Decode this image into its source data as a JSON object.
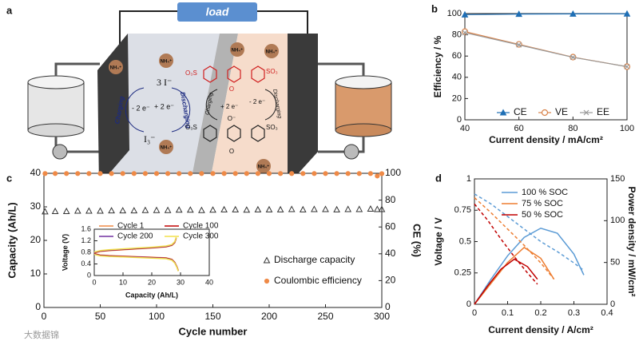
{
  "schematic": {
    "label": "a",
    "load": "load",
    "ammonium": "NH₄⁺",
    "triiodide": "I₃⁻",
    "iodide": "3 I⁻",
    "gain": "+ 2 e⁻",
    "loss": "- 2 e⁻",
    "charging": "Charging",
    "discharging": "Discharging",
    "sulfonate_left": "O₃S",
    "sulfonate_right": "SO₃",
    "oxygen": "O",
    "oxide": "O⁻"
  },
  "watermark": "大数据锦",
  "chart_data": [
    {
      "type": "line",
      "label": "b",
      "xlabel": "Current density / mA/cm²",
      "ylabel": "Efficiency / %",
      "x": [
        40,
        60,
        80,
        100
      ],
      "xlim": [
        40,
        100
      ],
      "xticks": [
        40,
        60,
        80,
        100
      ],
      "ylim": [
        0,
        100
      ],
      "yticks": [
        0,
        20,
        40,
        60,
        80,
        100
      ],
      "grid": false,
      "legend": "bottom",
      "series": [
        {
          "name": "CE",
          "color": "#1f6fb5",
          "marker": "triangle",
          "values": [
            99,
            99.5,
            99.7,
            99.8
          ]
        },
        {
          "name": "VE",
          "color": "#d9834a",
          "marker": "circle-open",
          "values": [
            83,
            71,
            59,
            50
          ]
        },
        {
          "name": "EE",
          "color": "#9a9a9a",
          "marker": "cross",
          "values": [
            82,
            70.5,
            58.8,
            50
          ]
        }
      ]
    },
    {
      "type": "scatter",
      "label": "c",
      "xlabel": "Cycle number",
      "ylabel": "Capacity (Ah/L)",
      "y2label": "CE (%)",
      "x": [
        1,
        10,
        20,
        30,
        40,
        50,
        60,
        70,
        80,
        90,
        100,
        110,
        120,
        130,
        140,
        150,
        160,
        170,
        180,
        190,
        200,
        210,
        220,
        230,
        240,
        250,
        260,
        270,
        280,
        290,
        296,
        300
      ],
      "xlim": [
        0,
        300
      ],
      "xticks": [
        0,
        50,
        100,
        150,
        200,
        250,
        300
      ],
      "ylim": [
        0,
        40
      ],
      "yticks": [
        0,
        10,
        20,
        30,
        40
      ],
      "y2lim": [
        0,
        100
      ],
      "y2ticks": [
        0,
        20,
        40,
        60,
        80,
        100
      ],
      "grid": false,
      "legend": "lower right",
      "series": [
        {
          "name": "Discharge capacity",
          "color": "#333333",
          "marker": "triangle-open",
          "axis": "y",
          "values": [
            28.6,
            28.7,
            28.7,
            28.8,
            28.8,
            28.8,
            28.9,
            28.9,
            28.9,
            29.0,
            29.0,
            29.0,
            29.1,
            29.1,
            29.0,
            29.1,
            29.2,
            29.2,
            29.1,
            29.2,
            29.2,
            29.2,
            29.3,
            29.2,
            29.3,
            29.3,
            29.2,
            29.3,
            29.3,
            29.4,
            29.3,
            29.3
          ]
        },
        {
          "name": "Coulombic efficiency",
          "color": "#ef8a47",
          "marker": "circle",
          "axis": "y2",
          "values": [
            99.8,
            99.8,
            99.8,
            99.8,
            99.8,
            99.8,
            99.8,
            99.8,
            99.8,
            99.8,
            99.8,
            99.8,
            99.8,
            99.8,
            99.8,
            99.8,
            99.8,
            99.8,
            99.8,
            99.8,
            99.8,
            99.8,
            99.8,
            99.8,
            99.8,
            99.8,
            99.8,
            99.8,
            99.8,
            99.8,
            98.0,
            99.7
          ]
        }
      ],
      "inset": {
        "type": "line",
        "xlabel": "Capacity (Ah/L)",
        "ylabel": "Voltage (V)",
        "x": [
          0,
          2,
          5,
          10,
          15,
          20,
          25,
          27,
          28,
          28.5,
          null,
          0,
          2,
          5,
          10,
          15,
          20,
          25,
          27,
          28,
          28.8,
          29.2
        ],
        "xlim": [
          0,
          40
        ],
        "xticks": [
          0,
          10,
          20,
          30,
          40
        ],
        "ylim": [
          0,
          1.6
        ],
        "yticks": [
          0,
          0.4,
          0.8,
          1.2,
          1.6
        ],
        "legend": "top",
        "series": [
          {
            "name": "Cycle 1",
            "color": "#ef8a47",
            "values": [
              0.78,
              0.83,
              0.86,
              0.89,
              0.92,
              0.95,
              0.99,
              1.04,
              1.13,
              1.28,
              null,
              0.76,
              0.71,
              0.69,
              0.67,
              0.65,
              0.63,
              0.61,
              0.56,
              0.46,
              0.3,
              0.18
            ]
          },
          {
            "name": "Cycle 100",
            "color": "#c00000",
            "values": [
              0.79,
              0.84,
              0.87,
              0.9,
              0.93,
              0.96,
              1.0,
              1.05,
              1.15,
              1.3,
              null,
              0.75,
              0.7,
              0.68,
              0.66,
              0.64,
              0.62,
              0.6,
              0.55,
              0.45,
              0.29,
              0.17
            ]
          },
          {
            "name": "Cycle 200",
            "color": "#7030a0",
            "values": [
              0.8,
              0.85,
              0.88,
              0.91,
              0.94,
              0.97,
              1.01,
              1.06,
              1.16,
              1.31,
              null,
              0.74,
              0.69,
              0.67,
              0.65,
              0.63,
              0.61,
              0.59,
              0.54,
              0.44,
              0.28,
              0.16
            ]
          },
          {
            "name": "Cycle 300",
            "color": "#f2e14a",
            "values": [
              0.81,
              0.86,
              0.89,
              0.92,
              0.95,
              0.98,
              1.02,
              1.07,
              1.17,
              1.32,
              null,
              0.73,
              0.68,
              0.66,
              0.64,
              0.62,
              0.6,
              0.58,
              0.53,
              0.43,
              0.27,
              0.15
            ]
          }
        ]
      }
    },
    {
      "type": "line",
      "label": "d",
      "xlabel": "Current density / A/cm²",
      "ylabel": "Voltage / V",
      "y2label": "Power density / mW/cm²",
      "xlim": [
        0,
        0.4
      ],
      "xticks": [
        0,
        0.1,
        0.2,
        0.3,
        0.4
      ],
      "ylim": [
        0,
        1
      ],
      "yticks": [
        0,
        0.25,
        0.5,
        0.75,
        1
      ],
      "y2lim": [
        0,
        150
      ],
      "y2ticks": [
        0,
        50,
        100,
        150
      ],
      "grid": false,
      "legend": "upper left",
      "styles": {
        "values": "dashed",
        "power": "solid"
      },
      "series": [
        {
          "name": "100 % SOC",
          "color": "#5b9bd5",
          "x": [
            0,
            0.05,
            0.1,
            0.15,
            0.2,
            0.25,
            0.3,
            0.33
          ],
          "values": [
            0.88,
            0.8,
            0.7,
            0.6,
            0.5,
            0.42,
            0.33,
            0.27
          ],
          "power": [
            0,
            30,
            58,
            80,
            91,
            85,
            60,
            35
          ]
        },
        {
          "name": "75 % SOC",
          "color": "#ed7d31",
          "x": [
            0,
            0.05,
            0.1,
            0.15,
            0.2,
            0.24
          ],
          "values": [
            0.85,
            0.73,
            0.6,
            0.47,
            0.33,
            0.2
          ],
          "power": [
            0,
            25,
            50,
            68,
            55,
            30
          ]
        },
        {
          "name": "50 % SOC",
          "color": "#c00000",
          "x": [
            0,
            0.04,
            0.08,
            0.12,
            0.16,
            0.19
          ],
          "values": [
            0.8,
            0.67,
            0.52,
            0.38,
            0.25,
            0.16
          ],
          "power": [
            0,
            22,
            42,
            54,
            45,
            30
          ]
        }
      ]
    }
  ]
}
